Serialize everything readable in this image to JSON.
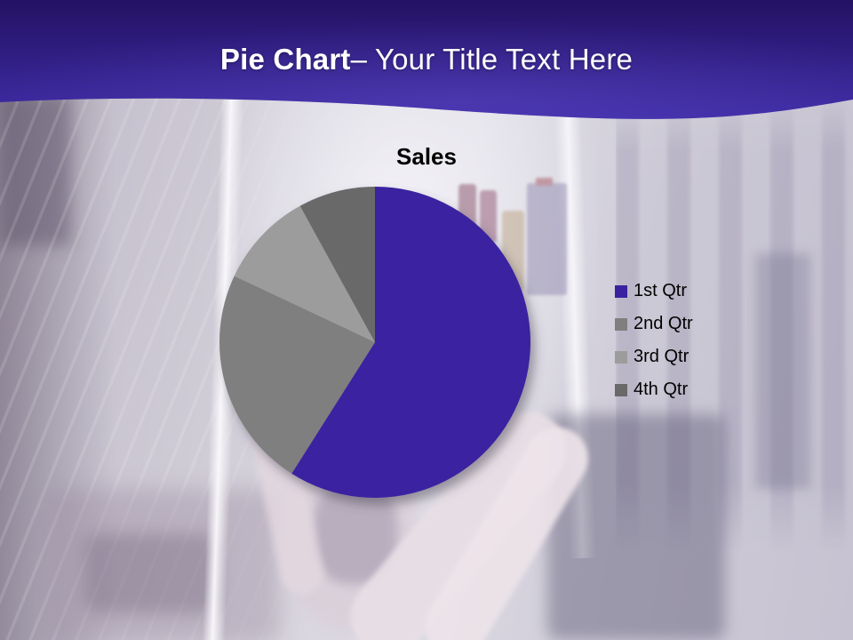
{
  "slide": {
    "header": {
      "title_bold": "Pie Chart",
      "title_regular": "– Your Title Text Here"
    }
  },
  "colors": {
    "band_top": "#241264",
    "band_bottom": "#3D2BA4",
    "band_glow": "#6A55D4",
    "title_text": "#FFFFFF",
    "chart_text": "#000000",
    "pie_shadow": "#4A4455",
    "bg_wash": "#CBC6D4",
    "bg_bright": "#ECEAF1",
    "bg_dark": "#8F8798",
    "bg_skin": "#EBE0E6"
  },
  "chart_data": {
    "type": "pie",
    "title": "Sales",
    "categories": [
      "1st Qtr",
      "2nd Qtr",
      "3rd Qtr",
      "4th Qtr"
    ],
    "values": [
      59,
      23,
      10,
      8
    ],
    "unit": "percent (estimated from slice angles)",
    "colors": [
      "#3A21A0",
      "#7F7F7F",
      "#9C9C9C",
      "#696969"
    ],
    "start_angle_deg": 0,
    "direction": "clockwise",
    "legend_position": "right",
    "data_labels": false
  }
}
